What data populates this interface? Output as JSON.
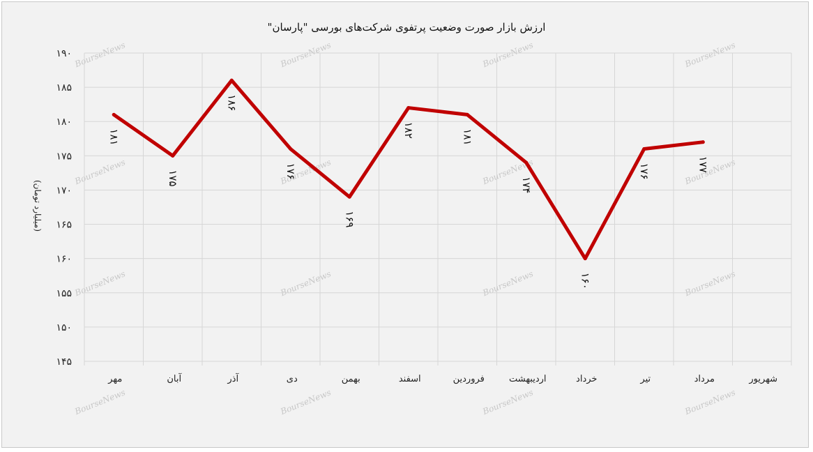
{
  "chart_data": {
    "type": "line",
    "title": "ارزش بازار صورت وضعیت پرتفوی شرکت‌های بورسی \"پارسان\"",
    "ylabel": "(میلیارد تومان)",
    "xlabel": "",
    "categories": [
      "مهر",
      "آبان",
      "آذر",
      "دی",
      "بهمن",
      "اسفند",
      "فروردین",
      "اردیبهشت",
      "خرداد",
      "تیر",
      "مرداد",
      "شهریور"
    ],
    "values": [
      181,
      175,
      186,
      176,
      169,
      182,
      181,
      174,
      160,
      176,
      177,
      null
    ],
    "data_labels": [
      "۱۸۱",
      "۱۷۵",
      "۱۸۶",
      "۱۷۶",
      "۱۶۹",
      "۱۸۲",
      "۱۸۱",
      "۱۷۴",
      "۱۶۰",
      "۱۷۶",
      "۱۷۷",
      ""
    ],
    "ylim": [
      145,
      190
    ],
    "yticks": [
      190,
      185,
      180,
      175,
      170,
      165,
      160,
      155,
      150,
      145
    ],
    "ytick_labels": [
      "۱۹۰",
      "۱۸۵",
      "۱۸۰",
      "۱۷۵",
      "۱۷۰",
      "۱۶۵",
      "۱۶۰",
      "۱۵۵",
      "۱۵۰",
      "۱۴۵"
    ],
    "grid": true,
    "line_color": "#c00000",
    "watermark": "BourseNews"
  }
}
